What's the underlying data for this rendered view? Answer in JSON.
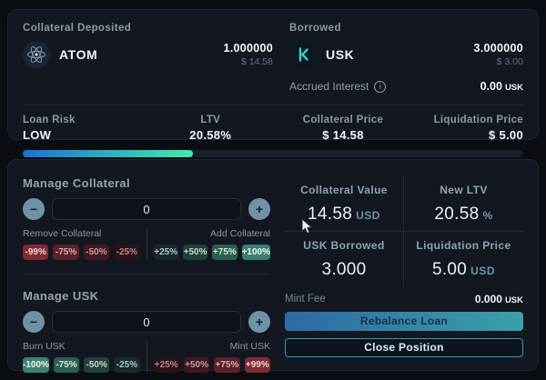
{
  "deposited": {
    "label": "Collateral Deposited",
    "token": "ATOM",
    "amount": "1.000000",
    "usd": "$ 14.58"
  },
  "borrowed": {
    "label": "Borrowed",
    "token": "USK",
    "amount": "3.000000",
    "usd": "$ 3.00",
    "accrued_label": "Accrued Interest",
    "accrued_value": "0.00",
    "accrued_unit": "USK"
  },
  "risk": {
    "loan_risk_label": "Loan Risk",
    "loan_risk_value": "LOW",
    "ltv_label": "LTV",
    "ltv_value": "20.58%",
    "collateral_price_label": "Collateral Price",
    "collateral_price_value": "$ 14.58",
    "liquidation_price_label": "Liquidation Price",
    "liquidation_price_value": "$ 5.00",
    "bar_percent": 34
  },
  "manage_collateral": {
    "title": "Manage Collateral",
    "input_value": "0",
    "remove_label": "Remove Collateral",
    "add_label": "Add Collateral",
    "remove_buttons": [
      "-99%",
      "-75%",
      "-50%",
      "-25%"
    ],
    "add_buttons": [
      "+25%",
      "+50%",
      "+75%",
      "+100%"
    ]
  },
  "manage_usk": {
    "title": "Manage USK",
    "input_value": "0",
    "burn_label": "Burn USK",
    "mint_label": "Mint USK",
    "burn_buttons": [
      "-100%",
      "-75%",
      "-50%",
      "-25%"
    ],
    "mint_buttons": [
      "+25%",
      "+50%",
      "+75%",
      "+99%"
    ]
  },
  "stats": {
    "cells": [
      {
        "label": "Collateral Value",
        "value": "14.58",
        "unit": "USD"
      },
      {
        "label": "New LTV",
        "value": "20.58",
        "unit": "%"
      },
      {
        "label": "USK Borrowed",
        "value": "3.000",
        "unit": ""
      },
      {
        "label": "Liquidation Price",
        "value": "5.00",
        "unit": "USD"
      }
    ]
  },
  "footer": {
    "mint_fee_label": "Mint Fee",
    "mint_fee_value": "0.000",
    "mint_fee_unit": "USK",
    "rebalance_label": "Rebalance Loan",
    "close_label": "Close Position"
  },
  "colors": {
    "bar_gradient": [
      "#1d6fd2",
      "#43e9b1"
    ],
    "rebalance_gradient": [
      "#2c6aa4",
      "#3aa0a8"
    ],
    "bright_red": "#7e2a32",
    "bright_green": "#3b8070",
    "usk_teal": "#35d6d2"
  }
}
